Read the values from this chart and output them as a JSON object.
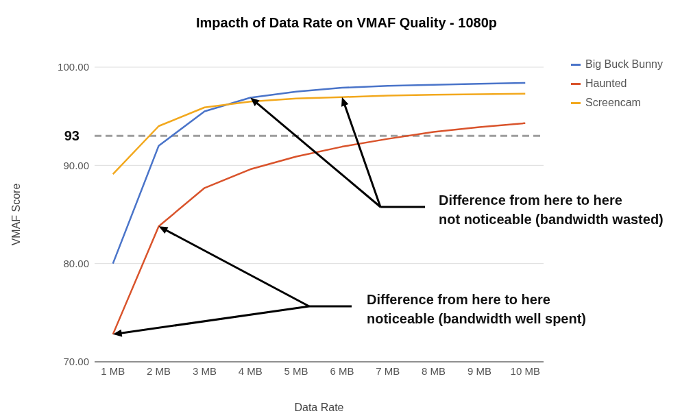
{
  "chart_data": {
    "type": "line",
    "title": "Impacth of Data Rate on VMAF Quality - 1080p",
    "xlabel": "Data Rate",
    "ylabel": "VMAF Score",
    "categories": [
      "1 MB",
      "2 MB",
      "3 MB",
      "4 MB",
      "5 MB",
      "6 MB",
      "7 MB",
      "8 MB",
      "9 MB",
      "10 MB"
    ],
    "series": [
      {
        "name": "Big Buck Bunny",
        "color": "#4a74c9",
        "values": [
          80.0,
          92.0,
          95.5,
          96.9,
          97.5,
          97.9,
          98.1,
          98.2,
          98.3,
          98.4
        ]
      },
      {
        "name": "Haunted",
        "color": "#d9532b",
        "values": [
          72.8,
          83.8,
          87.7,
          89.6,
          90.9,
          91.9,
          92.7,
          93.4,
          93.9,
          94.3
        ]
      },
      {
        "name": "Screencam",
        "color": "#f2a81d",
        "values": [
          89.1,
          94.0,
          95.9,
          96.5,
          96.8,
          96.95,
          97.1,
          97.2,
          97.25,
          97.3
        ]
      }
    ],
    "ylim": [
      70,
      100
    ],
    "yticks": [
      {
        "value": 70,
        "label": "70.00"
      },
      {
        "value": 80,
        "label": "80.00"
      },
      {
        "value": 90,
        "label": "90.00"
      },
      {
        "value": 100,
        "label": "100.00"
      }
    ],
    "grid": "y",
    "legend": "top right",
    "marker": "none",
    "line_style": "solid",
    "ref_lines": [
      {
        "axis": "y",
        "value": 93,
        "label": "93",
        "color": "#9e9e9e",
        "line_style": "dashed"
      }
    ],
    "annotations": [
      "Difference from here to here\nnot noticeable (bandwidth wasted)",
      "Difference from here to here\nnoticeable (bandwidth well spent)"
    ]
  }
}
